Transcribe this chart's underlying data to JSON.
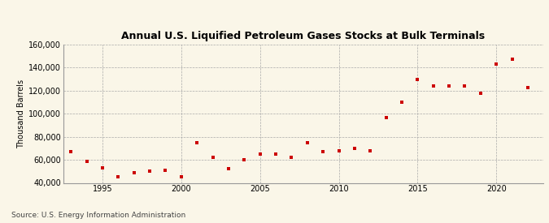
{
  "title": "Annual U.S. Liquified Petroleum Gases Stocks at Bulk Terminals",
  "ylabel": "Thousand Barrels",
  "source": "Source: U.S. Energy Information Administration",
  "background_color": "#faf6e8",
  "plot_background_color": "#faf6e8",
  "marker_color": "#cc0000",
  "marker": "s",
  "marker_size": 3.5,
  "ylim": [
    40000,
    160000
  ],
  "yticks": [
    40000,
    60000,
    80000,
    100000,
    120000,
    140000,
    160000
  ],
  "xlim": [
    1992.5,
    2023
  ],
  "xticks": [
    1995,
    2000,
    2005,
    2010,
    2015,
    2020
  ],
  "years": [
    1993,
    1994,
    1995,
    1996,
    1997,
    1998,
    1999,
    2000,
    2001,
    2002,
    2003,
    2004,
    2005,
    2006,
    2007,
    2008,
    2009,
    2010,
    2011,
    2012,
    2013,
    2014,
    2015,
    2016,
    2017,
    2018,
    2019,
    2020,
    2021,
    2022
  ],
  "values": [
    67000,
    59000,
    53000,
    45000,
    49000,
    50000,
    51000,
    45000,
    75000,
    62000,
    52000,
    60000,
    65000,
    65000,
    62000,
    75000,
    67000,
    68000,
    70000,
    68000,
    97000,
    110000,
    130000,
    124000,
    124000,
    124000,
    118000,
    143000,
    147000,
    123000
  ],
  "title_fontsize": 9,
  "ylabel_fontsize": 7,
  "tick_fontsize": 7,
  "source_fontsize": 6.5
}
